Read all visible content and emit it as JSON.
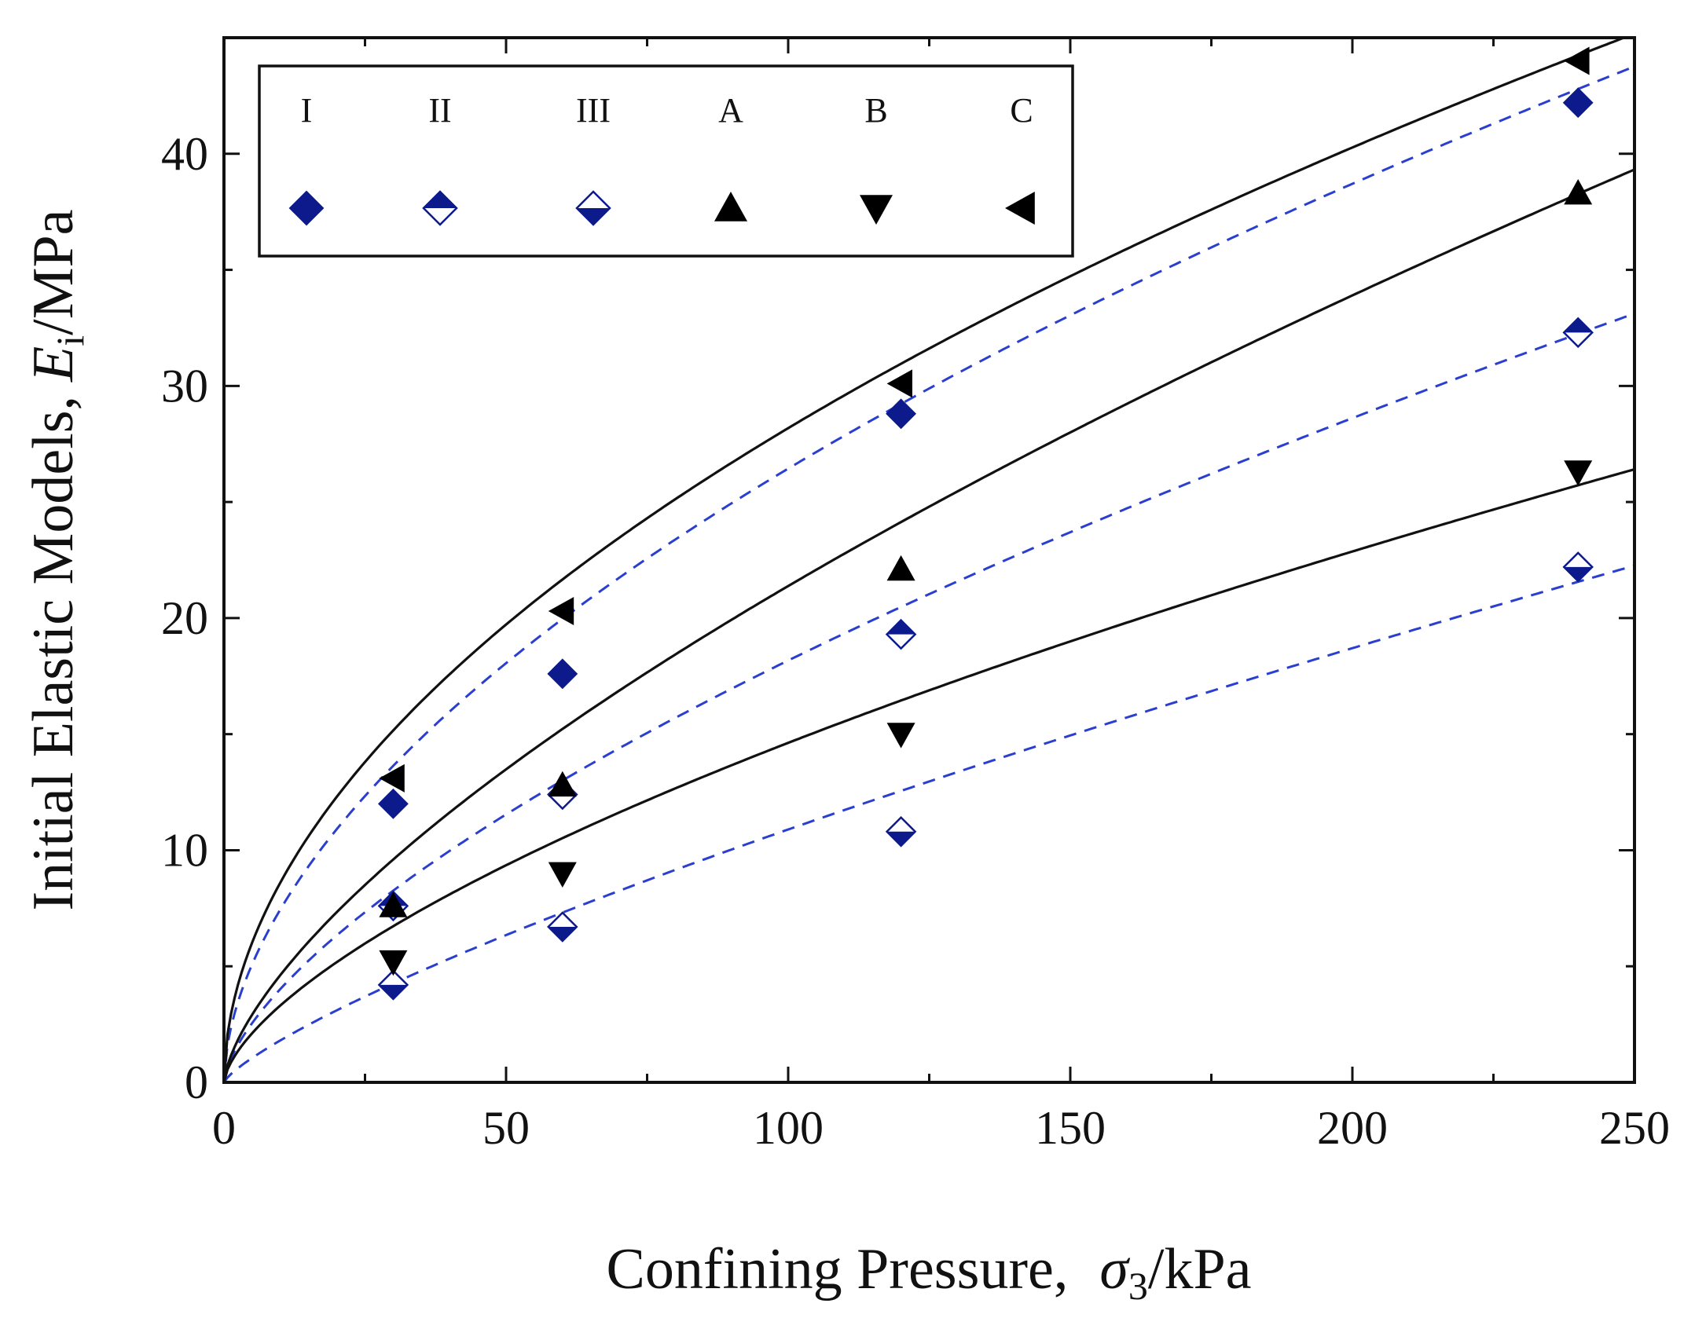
{
  "chart_data": {
    "type": "scatter",
    "xlabel": {
      "prefix": "Confining Pressure,",
      "symbol": "σ",
      "sub": "3",
      "suffix": "/kPa"
    },
    "ylabel": {
      "prefix": "Initial Elastic Models,",
      "symbol": "E",
      "sub": "i",
      "suffix": "/MPa"
    },
    "xlim": [
      0,
      250
    ],
    "ylim": [
      0,
      45
    ],
    "xticks": [
      0,
      50,
      100,
      150,
      200,
      250
    ],
    "yticks": [
      0,
      10,
      20,
      30,
      40
    ],
    "xtick_labels": [
      "0",
      "50",
      "100",
      "150",
      "200",
      "250"
    ],
    "ytick_labels": [
      "0",
      "10",
      "20",
      "30",
      "40"
    ],
    "x_minor_step": 25,
    "y_minor_step": 5,
    "legend_position": "top-left",
    "series": [
      {
        "name": "I",
        "marker": "diamond-filled",
        "color": "#0d1a8c",
        "curve_style": "dashed",
        "x": [
          30,
          60,
          120,
          240
        ],
        "y": [
          12.0,
          17.6,
          28.8,
          42.2
        ],
        "fit": {
          "a": 2.1,
          "b": 0.55
        }
      },
      {
        "name": "II",
        "marker": "diamond-half-top",
        "color": "#0d1a8c",
        "curve_style": "dashed",
        "x": [
          30,
          60,
          120,
          240
        ],
        "y": [
          7.6,
          12.4,
          19.3,
          32.3
        ],
        "fit": {
          "a": 0.89,
          "b": 0.655
        }
      },
      {
        "name": "III",
        "marker": "diamond-half-bottom",
        "color": "#0d1a8c",
        "curve_style": "dashed",
        "x": [
          30,
          60,
          120,
          240
        ],
        "y": [
          4.2,
          6.7,
          10.8,
          22.2
        ],
        "fit": {
          "a": 0.3,
          "b": 0.78
        }
      },
      {
        "name": "A",
        "marker": "triangle-up",
        "color": "#000000",
        "curve_style": "solid",
        "x": [
          30,
          60,
          120,
          240
        ],
        "y": [
          7.6,
          12.8,
          22.1,
          38.3
        ],
        "fit": {
          "a": 1.0,
          "b": 0.665
        }
      },
      {
        "name": "B",
        "marker": "triangle-down",
        "color": "#000000",
        "curve_style": "solid",
        "x": [
          30,
          60,
          120,
          240
        ],
        "y": [
          5.2,
          9.0,
          15.0,
          26.3
        ],
        "fit": {
          "a": 0.75,
          "b": 0.645
        }
      },
      {
        "name": "C",
        "marker": "triangle-left",
        "color": "#000000",
        "curve_style": "solid",
        "x": [
          30,
          60,
          120,
          240
        ],
        "y": [
          13.1,
          20.3,
          30.1,
          44.0
        ],
        "fit": {
          "a": 2.63,
          "b": 0.515
        }
      }
    ]
  }
}
